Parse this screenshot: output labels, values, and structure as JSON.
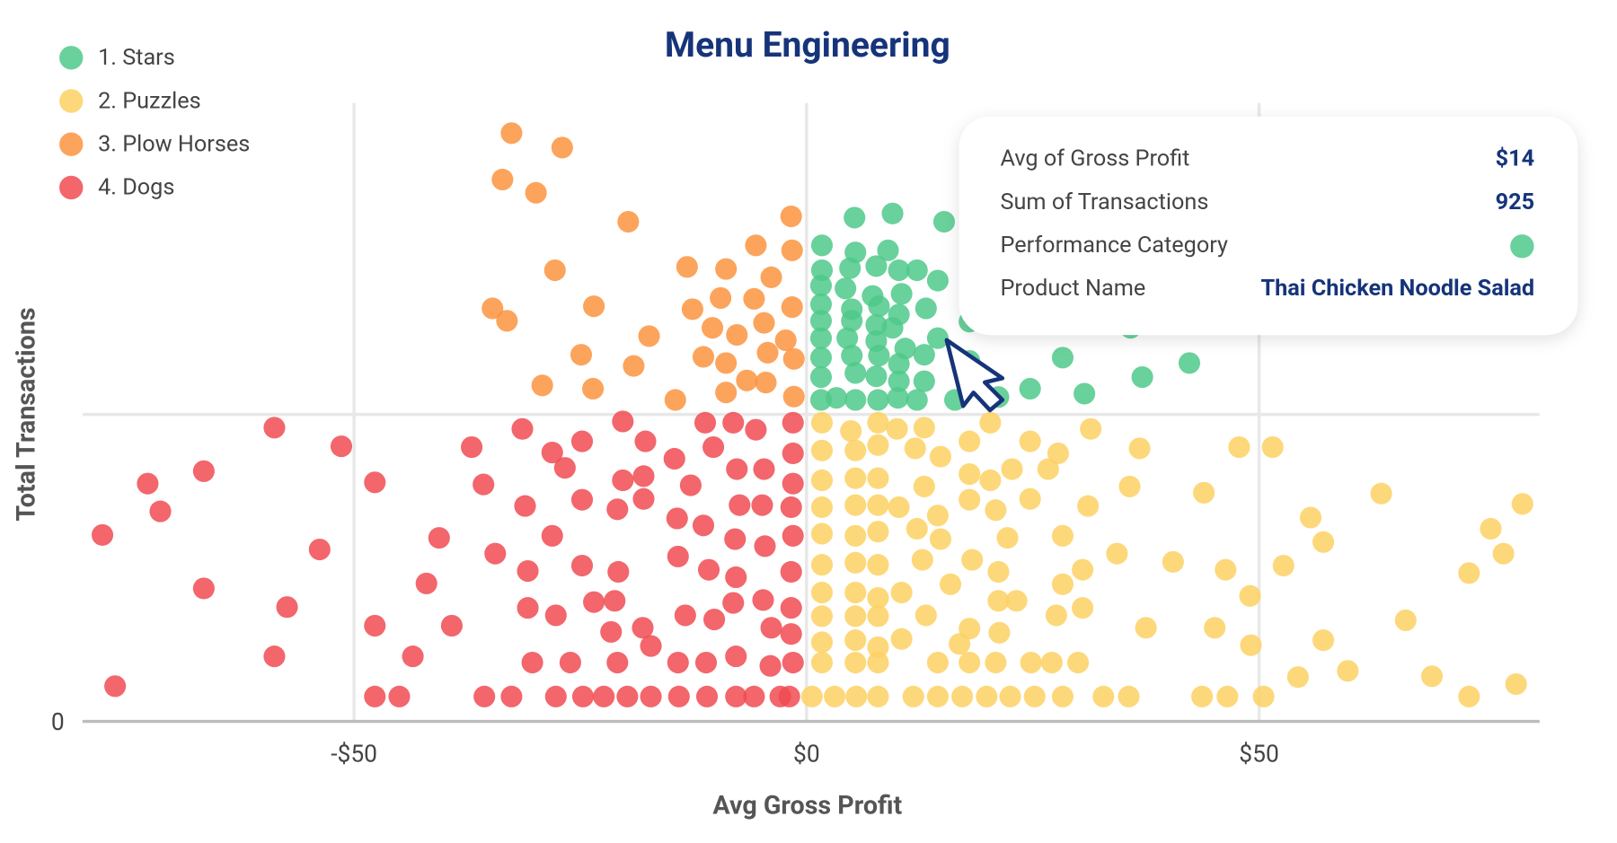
{
  "chart_data": {
    "type": "scatter",
    "title": "Menu Engineering",
    "x_label": "Avg Gross Profit",
    "y_label": "Total Transactions",
    "xlim": [
      -80,
      81
    ],
    "ylim": [
      0,
      1500
    ],
    "xticks": [
      {
        "value": -50,
        "label": "-$50"
      },
      {
        "value": 0,
        "label": "$0"
      },
      {
        "value": 50,
        "label": "$50"
      }
    ],
    "yticks": [
      0
    ],
    "y_reference_line": 741,
    "grid": true,
    "legend": "top-left",
    "series": [
      {
        "name": "1. Stars",
        "color": "#4fc98a",
        "x": [
          5.3,
          9.5,
          15.2,
          1.7,
          5.4,
          9.0,
          1.7,
          4.8,
          7.7,
          10.2,
          12.2,
          1.6,
          4.3,
          7.3,
          10.5,
          14.5,
          1.6,
          5.0,
          8.0,
          10.2,
          13.2,
          1.6,
          5.0,
          7.7,
          9.5,
          1.6,
          4.5,
          7.7,
          10.9,
          14.5,
          1.6,
          5.0,
          8.0,
          10.2,
          13.0,
          1.6,
          5.4,
          7.7,
          10.2,
          13.0,
          1.6,
          3.3,
          5.4,
          7.9,
          10.1,
          12.2,
          16.4,
          18.0,
          21.2,
          24.7,
          28.3,
          30.7,
          37.1,
          42.3,
          35.8,
          18.0
        ],
        "values": [
          1216,
          1226,
          1206,
          1149,
          1132,
          1137,
          1089,
          1094,
          1099,
          1089,
          1089,
          1052,
          1045,
          1027,
          1032,
          1064,
          1007,
          995,
          1002,
          982,
          997,
          967,
          967,
          957,
          950,
          925,
          925,
          918,
          900,
          925,
          878,
          883,
          883,
          863,
          885,
          831,
          841,
          833,
          821,
          821,
          776,
          781,
          776,
          776,
          781,
          776,
          776,
          870,
          783,
          803,
          878,
          791,
          831,
          865,
          950,
          965
        ]
      },
      {
        "name": "2. Puzzles",
        "color": "#fdd163",
        "x": [
          1.7,
          4.9,
          7.9,
          10.0,
          13.0,
          1.7,
          5.4,
          7.9,
          12.0,
          14.8,
          18.0,
          20.3,
          24.7,
          27.8,
          31.4,
          36.8,
          47.8,
          51.5,
          1.7,
          5.4,
          7.9,
          13.0,
          18.0,
          20.3,
          22.7,
          26.7,
          35.7,
          43.9,
          1.7,
          5.4,
          7.9,
          10.2,
          14.5,
          18.0,
          20.9,
          24.7,
          31.1,
          63.5,
          79.1,
          55.7,
          57.1,
          1.7,
          5.4,
          7.9,
          12.2,
          14.8,
          22.2,
          28.3,
          75.6,
          1.7,
          5.4,
          7.9,
          12.8,
          18.3,
          21.2,
          30.5,
          34.3,
          40.5,
          46.3,
          52.7,
          73.2,
          77.0,
          1.7,
          5.4,
          7.9,
          10.5,
          15.9,
          21.2,
          23.2,
          28.3,
          49.0,
          1.7,
          5.4,
          7.9,
          13.2,
          18.0,
          21.3,
          27.6,
          30.5,
          37.5,
          45.1,
          66.2,
          1.7,
          5.4,
          7.9,
          10.5,
          16.9,
          20.9,
          24.8,
          27.1,
          30.0,
          49.1,
          57.1,
          1.7,
          5.4,
          7.9,
          14.5,
          18.0,
          59.8,
          54.3,
          69.1,
          78.4,
          0.6,
          3.1,
          5.5,
          7.9,
          11.8,
          14.5,
          17.2,
          19.9,
          22.5,
          25.2,
          28.3,
          32.8,
          35.6,
          43.7,
          46.5,
          50.5,
          73.2
        ],
        "values": [
          721,
          701,
          721,
          706,
          709,
          654,
          654,
          667,
          659,
          639,
          676,
          721,
          676,
          647,
          706,
          659,
          662,
          662,
          582,
          587,
          587,
          567,
          597,
          582,
          609,
          609,
          567,
          552,
          517,
          522,
          522,
          517,
          497,
          535,
          510,
          537,
          520,
          550,
          525,
          492,
          433,
          453,
          448,
          458,
          465,
          440,
          443,
          448,
          465,
          378,
          383,
          378,
          390,
          390,
          361,
          366,
          405,
          385,
          366,
          376,
          358,
          405,
          311,
          311,
          298,
          311,
          331,
          291,
          291,
          331,
          303,
          254,
          254,
          254,
          256,
          224,
          214,
          256,
          274,
          226,
          226,
          244,
          191,
          196,
          179,
          199,
          187,
          142,
          142,
          142,
          142,
          184,
          196,
          142,
          142,
          142,
          142,
          142,
          122,
          107,
          109,
          90,
          60,
          60,
          60,
          60,
          60,
          60,
          60,
          60,
          60,
          60,
          60,
          60,
          60,
          60,
          60,
          60,
          60
        ]
      },
      {
        "name": "3. Plow Horses",
        "color": "#fb9440",
        "x": [
          -32.6,
          -27.0,
          -33.6,
          -29.9,
          -19.7,
          -1.7,
          -5.6,
          -1.6,
          -13.2,
          -8.9,
          -3.9,
          -27.8,
          -34.7,
          -33.1,
          -23.5,
          -12.6,
          -9.5,
          -5.8,
          -1.6,
          -17.4,
          -10.4,
          -7.7,
          -4.7,
          -2.3,
          -24.9,
          -19.1,
          -11.4,
          -8.9,
          -4.3,
          -1.4,
          -29.2,
          -23.6,
          -14.5,
          -8.9,
          -4.5,
          -1.4,
          -6.6
        ],
        "values": [
          1420,
          1385,
          1308,
          1276,
          1206,
          1219,
          1149,
          1137,
          1097,
          1092,
          1072,
          1089,
          997,
          967,
          1002,
          995,
          1022,
          1020,
          1000,
          930,
          950,
          933,
          962,
          920,
          885,
          858,
          880,
          865,
          890,
          875,
          811,
          803,
          776,
          794,
          818,
          784,
          823
        ]
      },
      {
        "name": "4. Dogs",
        "color": "#f04b52",
        "x": [
          -58.8,
          -51.4,
          -66.6,
          -72.8,
          -71.4,
          -77.8,
          -53.8,
          -47.7,
          -66.6,
          -57.4,
          -58.8,
          -76.4,
          -47.7,
          -43.5,
          -39.2,
          -42.0,
          -40.6,
          -47.7,
          -45.0,
          -35.6,
          -32.6,
          -37.0,
          -31.4,
          -35.7,
          -31.1,
          -34.4,
          -28.1,
          -30.8,
          -30.8,
          -27.7,
          -28.1,
          -24.8,
          -26.7,
          -24.8,
          -24.8,
          -30.3,
          -26.1,
          -27.7,
          -24.7,
          -22.4,
          -20.3,
          -17.8,
          -20.3,
          -18.0,
          -20.9,
          -18.0,
          -20.8,
          -23.5,
          -21.2,
          -21.6,
          -18.1,
          -20.9,
          -17.2,
          -19.8,
          -17.2,
          -14.6,
          -14.3,
          -14.2,
          -13.4,
          -14.2,
          -14.1,
          -11.2,
          -10.3,
          -12.8,
          -11.4,
          -10.8,
          -10.2,
          -11.1,
          -11.0,
          -8.1,
          -7.7,
          -7.4,
          -7.9,
          -7.8,
          -8.1,
          -7.8,
          -7.8,
          -5.6,
          -4.7,
          -4.9,
          -4.6,
          -4.8,
          -3.9,
          -4.0,
          -5.8,
          -2.9,
          -1.5,
          -1.5,
          -1.5,
          -1.7,
          -1.5,
          -1.7,
          -1.7,
          -1.7,
          -1.5,
          -1.9
        ],
        "values": [
          709,
          664,
          604,
          574,
          507,
          450,
          415,
          577,
          321,
          276,
          157,
          85,
          231,
          157,
          231,
          333,
          443,
          60,
          60,
          60,
          60,
          662,
          706,
          572,
          520,
          405,
          448,
          363,
          274,
          256,
          649,
          676,
          612,
          535,
          376,
          142,
          142,
          60,
          60,
          60,
          724,
          676,
          582,
          592,
          512,
          537,
          361,
          288,
          291,
          216,
          226,
          142,
          182,
          60,
          60,
          634,
          490,
          398,
          256,
          142,
          60,
          721,
          662,
          570,
          473,
          366,
          246,
          142,
          60,
          721,
          609,
          522,
          440,
          348,
          286,
          157,
          60,
          704,
          609,
          522,
          423,
          293,
          226,
          134,
          60,
          60,
          721,
          647,
          574,
          517,
          448,
          361,
          274,
          211,
          142,
          60
        ]
      }
    ]
  },
  "tooltip": {
    "rows": [
      {
        "label": "Avg of Gross Profit",
        "value": "$14"
      },
      {
        "label": "Sum of Transactions",
        "value": "925"
      },
      {
        "label": "Performance Category"
      },
      {
        "label": "Product Name",
        "value": "Thai Chicken Noodle Salad"
      }
    ]
  }
}
